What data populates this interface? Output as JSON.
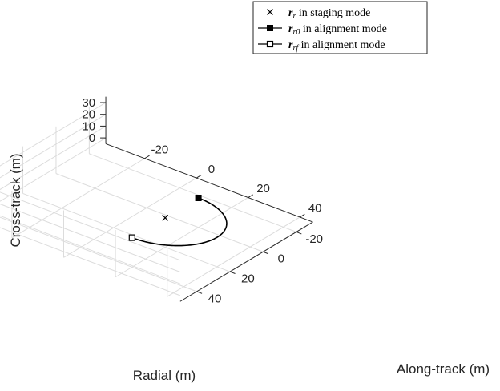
{
  "chart_data": {
    "type": "line",
    "projection": "3d",
    "title": "",
    "xlabel": "Radial (m)",
    "ylabel": "Along-track (m)",
    "zlabel": "Cross-track (m)",
    "xlim": [
      -35,
      45
    ],
    "ylim": [
      -30,
      50
    ],
    "zlim": [
      -5,
      35
    ],
    "xticks": [
      -20,
      0,
      20,
      40
    ],
    "yticks": [
      -20,
      0,
      20,
      40
    ],
    "zticks": [
      0,
      10,
      20,
      30
    ],
    "xtick_labels": [
      "-20",
      "0",
      "20",
      "40"
    ],
    "ytick_labels": [
      "-20",
      "0",
      "20",
      "40"
    ],
    "ztick_labels": [
      "0",
      "10",
      "20",
      "30"
    ],
    "grid": true,
    "legend_position": "top-right",
    "legend": [
      {
        "symbol": "r",
        "subscript": "r",
        "text": " in staging mode",
        "marker": "x"
      },
      {
        "symbol": "r",
        "subscript": "r0",
        "text": " in alignment mode",
        "marker": "filled-square"
      },
      {
        "symbol": "r",
        "subscript": "rf",
        "text": " in alignment mode",
        "marker": "open-square"
      }
    ],
    "series": [
      {
        "marker": "line",
        "center": [
          20,
          20,
          20
        ],
        "radius": 20,
        "start_angle_deg": -90,
        "end_angle_deg": 90,
        "direction": "ccw"
      }
    ],
    "points": [
      {
        "marker": "x",
        "x": 20,
        "y": 20,
        "z": 20
      },
      {
        "marker": "filled-square",
        "x": 20,
        "y": 0,
        "z": 20
      },
      {
        "marker": "open-square",
        "x": 20,
        "y": 40,
        "z": 20
      }
    ],
    "colors": {
      "line": "#000000",
      "grid": "#dcdcdc",
      "axis": "#262626"
    }
  }
}
